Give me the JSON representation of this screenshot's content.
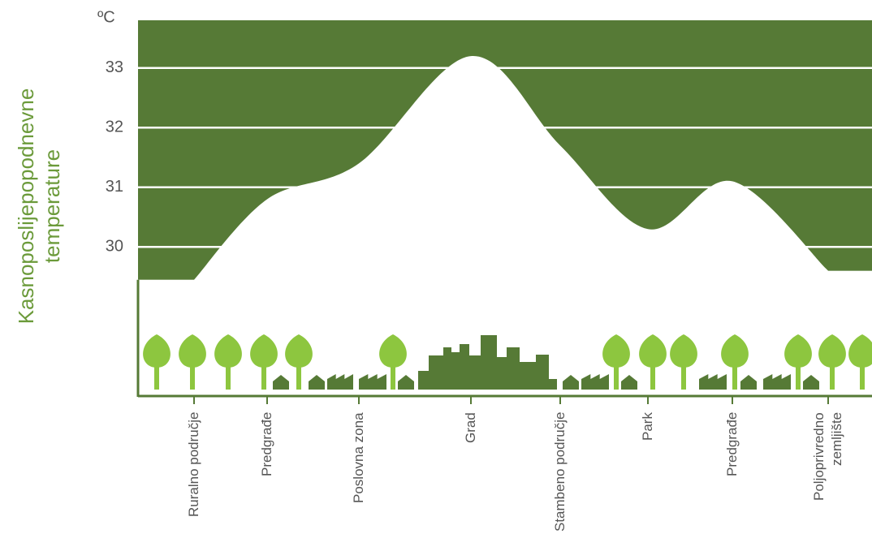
{
  "chart_data": {
    "type": "area",
    "y_axis_label": "Kasnoposlijepopodnevne temperature",
    "unit": "ºC",
    "categories": [
      "Ruralno područje",
      "Predgrađe",
      "Poslovna zona",
      "Grad",
      "Stambeno područje",
      "Park",
      "Predgrađe",
      "Poljoprivredno zemljište"
    ],
    "values": [
      29.45,
      30.8,
      31.4,
      33.2,
      31.7,
      30.3,
      31.1,
      29.6
    ],
    "color": "#ffffff",
    "background_color": "#567a36",
    "ylim": [
      27.5,
      33.8
    ],
    "yticks": [
      30,
      31,
      32,
      33
    ],
    "grid": true
  }
}
